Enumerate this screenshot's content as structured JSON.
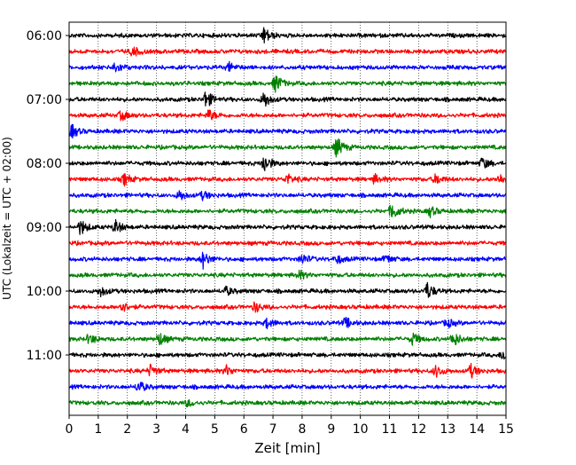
{
  "chart_data": {
    "type": "line",
    "xlabel": "Zeit  [min]",
    "ylabel": "UTC (Lokalzeit = UTC + 02:00)",
    "xlim": [
      0,
      15
    ],
    "x_ticks": [
      "0",
      "1",
      "2",
      "3",
      "4",
      "5",
      "6",
      "7",
      "8",
      "9",
      "10",
      "11",
      "12",
      "13",
      "14",
      "15"
    ],
    "x_grid": true,
    "y_tick_labels": [
      "06:00",
      "07:00",
      "08:00",
      "09:00",
      "10:00",
      "11:00"
    ],
    "trace_colors": [
      "#000000",
      "#ff0000",
      "#0000ff",
      "#008000"
    ],
    "traces": [
      {
        "start": "06:00",
        "color": "#000000",
        "events": [
          [
            6.7,
            1.0
          ]
        ]
      },
      {
        "start": "06:15",
        "color": "#ff0000",
        "events": [
          [
            2.2,
            0.6
          ]
        ]
      },
      {
        "start": "06:30",
        "color": "#0000ff",
        "events": [
          [
            1.6,
            0.7
          ],
          [
            5.5,
            0.5
          ]
        ]
      },
      {
        "start": "06:45",
        "color": "#008000",
        "events": [
          [
            7.1,
            1.1
          ]
        ]
      },
      {
        "start": "07:00",
        "color": "#000000",
        "events": [
          [
            4.7,
            1.1
          ],
          [
            6.7,
            1.0
          ]
        ]
      },
      {
        "start": "07:15",
        "color": "#ff0000",
        "events": [
          [
            1.8,
            0.6
          ],
          [
            4.8,
            0.7
          ]
        ]
      },
      {
        "start": "07:30",
        "color": "#0000ff",
        "events": [
          [
            0.1,
            0.8
          ]
        ]
      },
      {
        "start": "07:45",
        "color": "#008000",
        "events": [
          [
            9.2,
            1.2
          ]
        ]
      },
      {
        "start": "08:00",
        "color": "#000000",
        "events": [
          [
            6.7,
            1.1
          ],
          [
            14.2,
            0.7
          ]
        ]
      },
      {
        "start": "08:15",
        "color": "#ff0000",
        "events": [
          [
            1.9,
            0.7
          ],
          [
            7.5,
            0.6
          ],
          [
            10.5,
            0.5
          ],
          [
            12.6,
            0.6
          ],
          [
            14.8,
            0.6
          ]
        ]
      },
      {
        "start": "08:30",
        "color": "#0000ff",
        "events": [
          [
            3.8,
            0.6
          ],
          [
            4.6,
            0.5
          ]
        ]
      },
      {
        "start": "08:45",
        "color": "#008000",
        "events": [
          [
            11.1,
            1.0
          ],
          [
            12.4,
            0.6
          ]
        ]
      },
      {
        "start": "09:00",
        "color": "#000000",
        "events": [
          [
            0.4,
            0.9
          ],
          [
            1.6,
            0.8
          ]
        ]
      },
      {
        "start": "09:15",
        "color": "#ff0000",
        "events": []
      },
      {
        "start": "09:30",
        "color": "#0000ff",
        "events": [
          [
            4.6,
            1.0
          ],
          [
            8.0,
            0.6
          ],
          [
            9.2,
            0.5
          ],
          [
            10.9,
            0.5
          ]
        ]
      },
      {
        "start": "09:45",
        "color": "#008000",
        "events": [
          [
            7.9,
            0.5
          ]
        ]
      },
      {
        "start": "10:00",
        "color": "#000000",
        "events": [
          [
            1.1,
            0.6
          ],
          [
            5.4,
            0.5
          ],
          [
            12.3,
            1.0
          ]
        ]
      },
      {
        "start": "10:15",
        "color": "#ff0000",
        "events": [
          [
            1.8,
            0.7
          ],
          [
            6.4,
            0.6
          ]
        ]
      },
      {
        "start": "10:30",
        "color": "#0000ff",
        "events": [
          [
            6.8,
            0.6
          ],
          [
            9.5,
            0.6
          ],
          [
            13.0,
            0.5
          ]
        ]
      },
      {
        "start": "10:45",
        "color": "#008000",
        "events": [
          [
            0.7,
            0.6
          ],
          [
            3.1,
            0.8
          ],
          [
            11.8,
            0.7
          ],
          [
            13.2,
            0.9
          ]
        ]
      },
      {
        "start": "11:00",
        "color": "#000000",
        "events": [
          [
            14.9,
            0.7
          ]
        ]
      },
      {
        "start": "11:15",
        "color": "#ff0000",
        "events": [
          [
            2.8,
            0.7
          ],
          [
            5.4,
            0.6
          ],
          [
            12.6,
            0.7
          ],
          [
            13.8,
            0.8
          ]
        ]
      },
      {
        "start": "11:30",
        "color": "#0000ff",
        "events": [
          [
            2.4,
            0.7
          ]
        ]
      },
      {
        "start": "11:45",
        "color": "#008000",
        "events": [
          [
            4.1,
            0.4
          ]
        ]
      }
    ]
  }
}
